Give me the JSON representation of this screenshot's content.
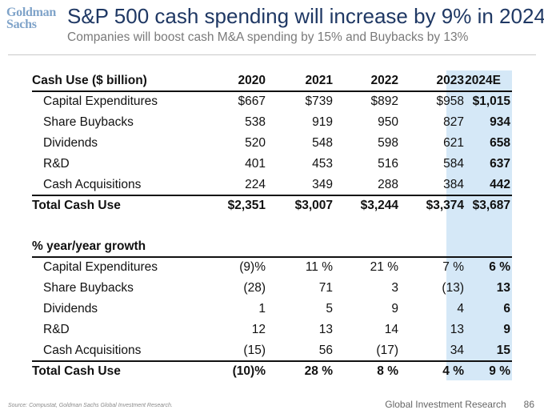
{
  "logo": "Goldman Sachs",
  "title": "S&P 500 cash spending will increase by 9% in 2024",
  "subtitle": "Companies will boost cash M&A spending by 15% and Buybacks by 13%",
  "table": {
    "header": {
      "label": "Cash Use ($ billion)",
      "cols": [
        "2020",
        "2021",
        "2022",
        "2023",
        "2024E"
      ]
    },
    "rows": [
      {
        "label": "Capital Expenditures",
        "values": [
          "$667",
          "$739",
          "$892",
          "$958",
          "$1,015"
        ]
      },
      {
        "label": "Share Buybacks",
        "values": [
          "538",
          "919",
          "950",
          "827",
          "934"
        ]
      },
      {
        "label": "Dividends",
        "values": [
          "520",
          "548",
          "598",
          "621",
          "658"
        ]
      },
      {
        "label": "R&D",
        "values": [
          "401",
          "453",
          "516",
          "584",
          "637"
        ]
      },
      {
        "label": "Cash Acquisitions",
        "values": [
          "224",
          "349",
          "288",
          "384",
          "442"
        ]
      }
    ],
    "total": {
      "label": "Total Cash Use",
      "values": [
        "$2,351",
        "$3,007",
        "$3,244",
        "$3,374",
        "$3,687"
      ]
    }
  },
  "growth": {
    "header": "% year/year growth",
    "rows": [
      {
        "label": "Capital Expenditures",
        "values": [
          "(9)%",
          "11 %",
          "21 %",
          "7 %",
          "6 %"
        ]
      },
      {
        "label": "Share Buybacks",
        "values": [
          "(28)",
          "71",
          "3",
          "(13)",
          "13"
        ]
      },
      {
        "label": "Dividends",
        "values": [
          "1",
          "5",
          "9",
          "4",
          "6"
        ]
      },
      {
        "label": "R&D",
        "values": [
          "12",
          "13",
          "14",
          "13",
          "9"
        ]
      },
      {
        "label": "Cash Acquisitions",
        "values": [
          "(15)",
          "56",
          "(17)",
          "34",
          "15"
        ]
      }
    ],
    "total": {
      "label": "Total Cash Use",
      "values": [
        "(10)%",
        "28 %",
        "8 %",
        "4 %",
        "9 %"
      ]
    }
  },
  "footer": {
    "source": "Source: Compustat, Goldman Sachs Global Investment Research.",
    "publisher": "Global Investment Research",
    "page": "86"
  },
  "colors": {
    "title": "#1f3864",
    "highlight": "#d5e8f7",
    "logo": "#7fa3c9"
  }
}
